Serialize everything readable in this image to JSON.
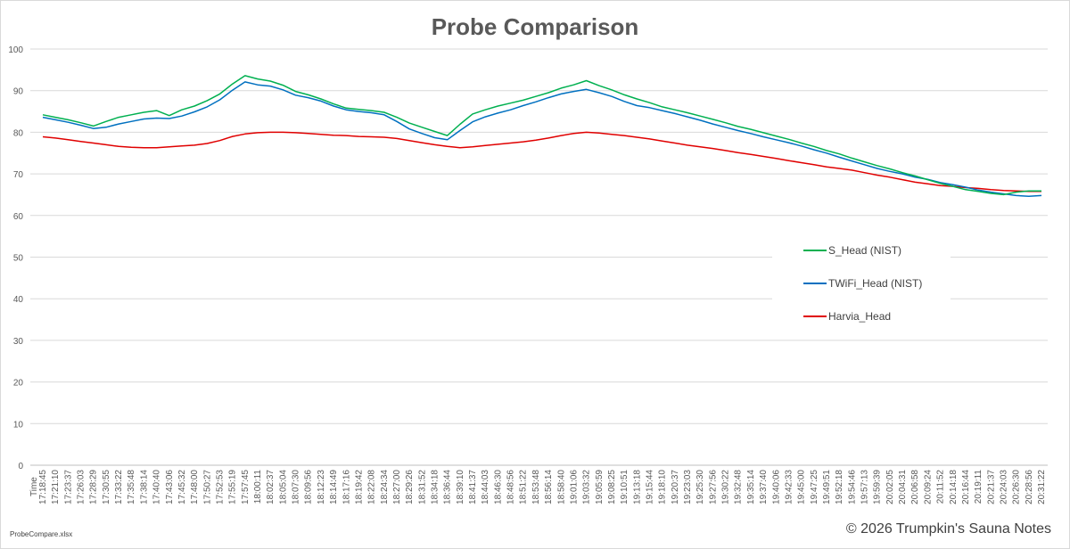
{
  "chart_data": {
    "type": "line",
    "title": "Probe Comparison",
    "xlabel": "Time",
    "ylabel": "",
    "ylim": [
      0,
      100
    ],
    "yticks": [
      0,
      10,
      20,
      30,
      40,
      50,
      60,
      70,
      80,
      90,
      100
    ],
    "grid": true,
    "legend_position": "right",
    "categories": [
      "17:18:45",
      "17:21:10",
      "17:23:37",
      "17:26:03",
      "17:28:29",
      "17:30:55",
      "17:33:22",
      "17:35:48",
      "17:38:14",
      "17:40:40",
      "17:43:06",
      "17:45:32",
      "17:48:00",
      "17:50:27",
      "17:52:53",
      "17:55:19",
      "17:57:45",
      "18:00:11",
      "18:02:37",
      "18:05:04",
      "18:07:30",
      "18:09:56",
      "18:12:23",
      "18:14:49",
      "18:17:16",
      "18:19:42",
      "18:22:08",
      "18:24:34",
      "18:27:00",
      "18:29:26",
      "18:31:52",
      "18:34:18",
      "18:36:44",
      "18:39:10",
      "18:41:37",
      "18:44:03",
      "18:46:30",
      "18:48:56",
      "18:51:22",
      "18:53:48",
      "18:56:14",
      "18:58:40",
      "19:01:06",
      "19:03:32",
      "19:05:59",
      "19:08:25",
      "19:10:51",
      "19:13:18",
      "19:15:44",
      "19:18:10",
      "19:20:37",
      "19:23:03",
      "19:25:30",
      "19:27:56",
      "19:30:22",
      "19:32:48",
      "19:35:14",
      "19:37:40",
      "19:40:06",
      "19:42:33",
      "19:45:00",
      "19:47:25",
      "19:49:51",
      "19:52:18",
      "19:54:46",
      "19:57:13",
      "19:59:39",
      "20:02:05",
      "20:04:31",
      "20:06:58",
      "20:09:24",
      "20:11:52",
      "20:14:18",
      "20:16:44",
      "20:19:11",
      "20:21:37",
      "20:24:03",
      "20:26:30",
      "20:28:56",
      "20:31:22"
    ],
    "series": [
      {
        "name": "S_Head (NIST)",
        "color": "#00b050",
        "values": [
          84.2,
          83.6,
          83.0,
          82.3,
          81.5,
          82.6,
          83.6,
          84.2,
          84.8,
          85.2,
          84.0,
          85.4,
          86.3,
          87.6,
          89.2,
          91.6,
          93.6,
          92.8,
          92.3,
          91.3,
          89.8,
          89.0,
          88.0,
          86.8,
          85.8,
          85.5,
          85.2,
          84.8,
          83.6,
          82.2,
          81.2,
          80.2,
          79.2,
          81.9,
          84.4,
          85.4,
          86.3,
          87.0,
          87.7,
          88.6,
          89.5,
          90.6,
          91.4,
          92.4,
          91.2,
          90.2,
          89.0,
          88.0,
          87.1,
          86.1,
          85.4,
          84.7,
          83.9,
          83.1,
          82.3,
          81.4,
          80.7,
          79.9,
          79.1,
          78.3,
          77.4,
          76.6,
          75.6,
          74.8,
          73.8,
          72.9,
          72.0,
          71.2,
          70.3,
          69.5,
          68.6,
          67.7,
          67.0,
          66.2,
          65.8,
          65.3,
          65.0,
          65.6,
          65.9,
          65.9
        ]
      },
      {
        "name": "TWiFi_Head (NIST)",
        "color": "#0070c0",
        "values": [
          83.6,
          83.0,
          82.4,
          81.7,
          80.9,
          81.2,
          82.0,
          82.6,
          83.2,
          83.4,
          83.3,
          83.9,
          84.9,
          86.1,
          87.8,
          90.1,
          92.1,
          91.4,
          91.1,
          90.2,
          88.9,
          88.3,
          87.5,
          86.3,
          85.4,
          85.0,
          84.7,
          84.2,
          82.6,
          80.8,
          79.7,
          78.7,
          78.2,
          80.4,
          82.5,
          83.7,
          84.6,
          85.4,
          86.4,
          87.3,
          88.3,
          89.2,
          89.8,
          90.3,
          89.5,
          88.6,
          87.4,
          86.4,
          85.9,
          85.2,
          84.5,
          83.7,
          82.9,
          82.0,
          81.2,
          80.4,
          79.7,
          78.9,
          78.2,
          77.5,
          76.7,
          75.8,
          75.0,
          74.0,
          73.1,
          72.2,
          71.3,
          70.6,
          70.0,
          69.2,
          68.7,
          67.9,
          67.4,
          66.8,
          66.1,
          65.6,
          65.2,
          64.8,
          64.6,
          64.8
        ]
      },
      {
        "name": "Harvia_Head",
        "color": "#e00000",
        "values": [
          78.9,
          78.6,
          78.2,
          77.8,
          77.4,
          77.0,
          76.6,
          76.4,
          76.3,
          76.3,
          76.5,
          76.7,
          76.9,
          77.3,
          78.0,
          79.0,
          79.6,
          79.9,
          80.0,
          80.0,
          79.9,
          79.7,
          79.5,
          79.3,
          79.2,
          79.0,
          78.9,
          78.8,
          78.5,
          78.0,
          77.5,
          77.0,
          76.6,
          76.3,
          76.5,
          76.8,
          77.1,
          77.4,
          77.7,
          78.1,
          78.6,
          79.2,
          79.7,
          80.0,
          79.8,
          79.5,
          79.2,
          78.8,
          78.4,
          77.9,
          77.4,
          76.9,
          76.5,
          76.1,
          75.6,
          75.1,
          74.7,
          74.2,
          73.7,
          73.2,
          72.7,
          72.2,
          71.7,
          71.3,
          70.9,
          70.3,
          69.7,
          69.2,
          68.6,
          68.0,
          67.6,
          67.2,
          67.0,
          66.7,
          66.5,
          66.2,
          66.0,
          65.9,
          65.8,
          65.8
        ]
      }
    ]
  },
  "footer": {
    "file_name": "ProbeCompare.xlsx",
    "copyright": "© 2026 Trumpkin's Sauna Notes"
  }
}
